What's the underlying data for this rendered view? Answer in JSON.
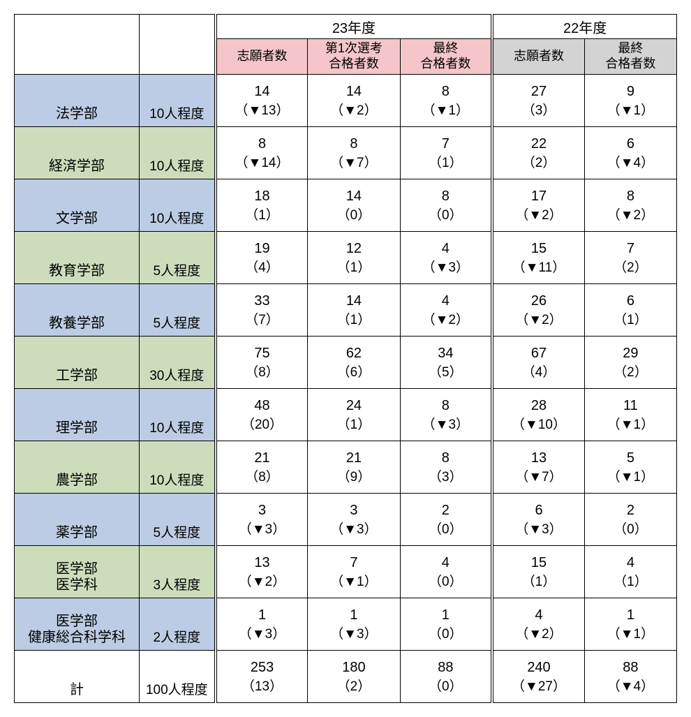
{
  "headers": {
    "year23": "23年度",
    "year22": "22年度",
    "applicants": "志願者数",
    "firstPass": "第1次選考\n合格者数",
    "finalPass": "最終\n合格者数"
  },
  "colors": {
    "pink": "#f4c6c9",
    "gray": "#d3d3d3",
    "blue": "#bccce4",
    "green": "#cdddbb",
    "border": "#000000",
    "background": "#ffffff"
  },
  "rows": [
    {
      "faculty": "法学部",
      "capacity": "10人程度",
      "shade": "blue",
      "c1n": "14",
      "c1d": "（▼13）",
      "c2n": "14",
      "c2d": "（▼2）",
      "c3n": "8",
      "c3d": "（▼1）",
      "c4n": "27",
      "c4d": "（3）",
      "c5n": "9",
      "c5d": "（▼1）"
    },
    {
      "faculty": "経済学部",
      "capacity": "10人程度",
      "shade": "green",
      "c1n": "8",
      "c1d": "（▼14）",
      "c2n": "8",
      "c2d": "（▼7）",
      "c3n": "7",
      "c3d": "（1）",
      "c4n": "22",
      "c4d": "（2）",
      "c5n": "6",
      "c5d": "（▼4）"
    },
    {
      "faculty": "文学部",
      "capacity": "10人程度",
      "shade": "blue",
      "c1n": "18",
      "c1d": "（1）",
      "c2n": "14",
      "c2d": "（0）",
      "c3n": "8",
      "c3d": "（0）",
      "c4n": "17",
      "c4d": "（▼2）",
      "c5n": "8",
      "c5d": "（▼2）"
    },
    {
      "faculty": "教育学部",
      "capacity": "5人程度",
      "shade": "green",
      "c1n": "19",
      "c1d": "（4）",
      "c2n": "12",
      "c2d": "（1）",
      "c3n": "4",
      "c3d": "（▼3）",
      "c4n": "15",
      "c4d": "（▼11）",
      "c5n": "7",
      "c5d": "（2）"
    },
    {
      "faculty": "教養学部",
      "capacity": "5人程度",
      "shade": "blue",
      "c1n": "33",
      "c1d": "（7）",
      "c2n": "14",
      "c2d": "（1）",
      "c3n": "4",
      "c3d": "（▼2）",
      "c4n": "26",
      "c4d": "（▼2）",
      "c5n": "6",
      "c5d": "（1）"
    },
    {
      "faculty": "工学部",
      "capacity": "30人程度",
      "shade": "green",
      "c1n": "75",
      "c1d": "（8）",
      "c2n": "62",
      "c2d": "（6）",
      "c3n": "34",
      "c3d": "（5）",
      "c4n": "67",
      "c4d": "（4）",
      "c5n": "29",
      "c5d": "（2）"
    },
    {
      "faculty": "理学部",
      "capacity": "10人程度",
      "shade": "blue",
      "c1n": "48",
      "c1d": "（20）",
      "c2n": "24",
      "c2d": "（1）",
      "c3n": "8",
      "c3d": "（▼3）",
      "c4n": "28",
      "c4d": "（▼10）",
      "c5n": "11",
      "c5d": "（▼1）"
    },
    {
      "faculty": "農学部",
      "capacity": "10人程度",
      "shade": "green",
      "c1n": "21",
      "c1d": "（8）",
      "c2n": "21",
      "c2d": "（9）",
      "c3n": "8",
      "c3d": "（3）",
      "c4n": "13",
      "c4d": "（▼7）",
      "c5n": "5",
      "c5d": "（▼1）"
    },
    {
      "faculty": "薬学部",
      "capacity": "5人程度",
      "shade": "blue",
      "c1n": "3",
      "c1d": "（▼3）",
      "c2n": "3",
      "c2d": "（▼3）",
      "c3n": "2",
      "c3d": "（0）",
      "c4n": "6",
      "c4d": "（▼3）",
      "c5n": "2",
      "c5d": "（0）"
    },
    {
      "faculty": "医学部\n医学科",
      "capacity": "3人程度",
      "shade": "green",
      "c1n": "13",
      "c1d": "（▼2）",
      "c2n": "7",
      "c2d": "（▼1）",
      "c3n": "4",
      "c3d": "（0）",
      "c4n": "15",
      "c4d": "（1）",
      "c5n": "4",
      "c5d": "（1）"
    },
    {
      "faculty": "医学部\n健康総合科学科",
      "capacity": "2人程度",
      "shade": "blue",
      "c1n": "1",
      "c1d": "（▼3）",
      "c2n": "1",
      "c2d": "（▼3）",
      "c3n": "1",
      "c3d": "（0）",
      "c4n": "4",
      "c4d": "（▼2）",
      "c5n": "1",
      "c5d": "（▼1）"
    }
  ],
  "total": {
    "label": "計",
    "capacity": "100人程度",
    "c1n": "253",
    "c1d": "（13）",
    "c2n": "180",
    "c2d": "（2）",
    "c3n": "88",
    "c3d": "（0）",
    "c4n": "240",
    "c4d": "（▼27）",
    "c5n": "88",
    "c5d": "（▼4）"
  }
}
